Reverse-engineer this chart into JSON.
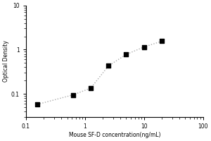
{
  "x": [
    0.156,
    0.625,
    1.25,
    2.5,
    5.0,
    10.0,
    20.0
  ],
  "y": [
    0.058,
    0.095,
    0.135,
    0.43,
    0.78,
    1.15,
    1.55
  ],
  "xlabel": "Mouse SF-D concentration(ng/mL)",
  "ylabel": "Optical Density",
  "xlim": [
    0.1,
    100
  ],
  "ylim": [
    0.03,
    10
  ],
  "xticks": [
    0.1,
    1,
    10,
    100
  ],
  "yticks": [
    0.1,
    1,
    10
  ],
  "ytick_labels": [
    "0.1",
    "1",
    "10"
  ],
  "xtick_labels": [
    "0.1",
    "1",
    "10",
    "100"
  ],
  "marker_color": "black",
  "line_color": "#aaaaaa",
  "background_color": "#ffffff",
  "figsize": [
    3.0,
    2.0
  ],
  "dpi": 100
}
